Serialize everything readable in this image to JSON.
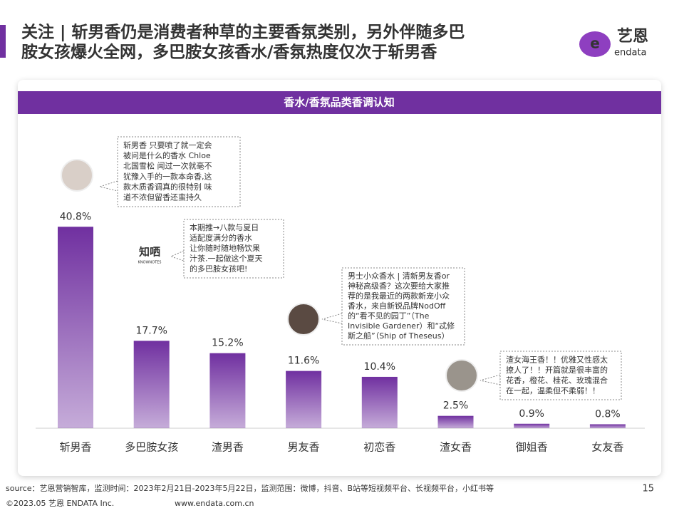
{
  "header": {
    "title_lines": [
      "关注 | 斩男香仍是消费者种草的主要香氛类别，另外伴随多巴",
      "胺女孩爆火全网，多巴胺女孩香水/香氛热度仅次于斩男香"
    ],
    "logo": "艺恩",
    "logo_sub": "endata"
  },
  "chart_data": {
    "type": "bar",
    "title": "香水/香氛品类香调认知",
    "categories": [
      "斩男香",
      "多巴胺女孩",
      "渣男香",
      "男友香",
      "初恋香",
      "渣女香",
      "御姐香",
      "女友香"
    ],
    "values": [
      40.8,
      17.7,
      15.2,
      11.6,
      10.4,
      2.5,
      0.9,
      0.8
    ],
    "value_labels": [
      "40.8%",
      "17.7%",
      "15.2%",
      "11.6%",
      "10.4%",
      "2.5%",
      "0.9%",
      "0.8%"
    ],
    "color": "#7030a0",
    "annotations": [
      {
        "lines": [
          "斩男香 只要喷了就一定会",
          "被问是什么的香水 Chloe",
          "北国雪松 闻过一次就毫不",
          "犹豫入手的一款本命香,这",
          "款木质香调真的很特别 味",
          "道不浓但留香还蛮持久"
        ]
      },
      {
        "brand": "知哂",
        "brand_sub": "KNOWNOTES",
        "lines": [
          "本期推→八款与夏日",
          "适配度满分的香水",
          "让你随时随地畅饮果",
          "汁茶.一起做这个夏天",
          "的多巴胺女孩吧!"
        ]
      },
      {
        "lines": [
          "男士小众香水 | 清新男友香or",
          "神秘高级香？这次要给大家推",
          "荐的是我最近的两款新宠小众",
          "香水，来自新锐品牌NodOff",
          "的“看不见的园丁”（The",
          "Invisible Gardener）和“忒修",
          "斯之船”（Ship of Theseus）"
        ]
      },
      {
        "lines": [
          "渣女海王香！！优雅又性感太",
          "撩人了！！开篇就是很丰富的",
          "花香，橙花、桂花、玫瑰混合",
          "在一起，温柔但不柔弱！！"
        ]
      }
    ]
  },
  "footer": {
    "source": "source：艺恩营销智库，监测时间：2023年2月21日-2023年5月22日，监测范围：微博，抖音、B站等短视频平台、长视频平台，小红书等",
    "page": "15",
    "copyright": "©2023.05 艺恩 ENDATA Inc.",
    "website": "www.endata.com.cn"
  }
}
